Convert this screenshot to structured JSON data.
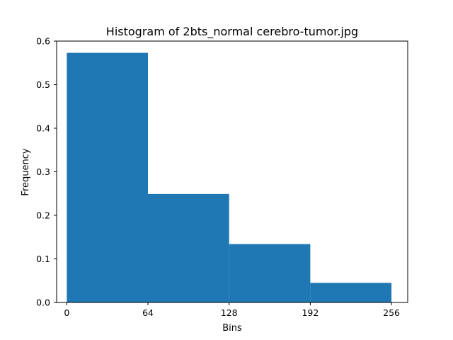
{
  "chart_data": {
    "type": "bar",
    "title": "Histogram of 2bts_normal cerebro-tumor.jpg",
    "xlabel": "Bins",
    "ylabel": "Frequency",
    "bins": [
      {
        "start": 0,
        "end": 64,
        "value": 0.573
      },
      {
        "start": 64,
        "end": 128,
        "value": 0.249
      },
      {
        "start": 128,
        "end": 192,
        "value": 0.134
      },
      {
        "start": 192,
        "end": 256,
        "value": 0.045
      }
    ],
    "xlim": [
      -8,
      268.8
    ],
    "ylim": [
      0,
      0.6
    ],
    "xticks": [
      0,
      64,
      128,
      192,
      256
    ],
    "xtick_labels": [
      "0",
      "64",
      "128",
      "192",
      "256"
    ],
    "yticks": [
      0,
      0.1,
      0.2,
      0.3,
      0.4,
      0.5,
      0.6
    ],
    "ytick_labels": [
      "0.0",
      "0.1",
      "0.2",
      "0.3",
      "0.4",
      "0.5",
      "0.6"
    ],
    "bar_color": "#1f77b4",
    "grid": false,
    "legend": false
  }
}
